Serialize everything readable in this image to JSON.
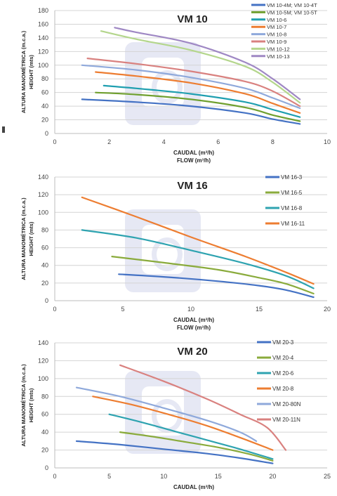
{
  "chart_data": [
    {
      "type": "line",
      "title": "VM 10",
      "xlabel": "CAUDAL (m³/h)",
      "xlabel2": "FLOW (m³/h)",
      "ylabel": "ALTURA MANOMÉTRICA (m.c.a.)",
      "ylabel2": "HEIGHT (mts)",
      "xlim": [
        0,
        10
      ],
      "ylim": [
        0,
        180
      ],
      "xticks": [
        0,
        2,
        4,
        6,
        8,
        10
      ],
      "yticks": [
        0,
        20,
        40,
        60,
        80,
        100,
        120,
        140,
        160,
        180
      ],
      "grid": "horizontal",
      "legend": "right",
      "series": [
        {
          "name": "VM 10-4M; VM 10-4T",
          "color": "#4472c4",
          "x": [
            1,
            3,
            5,
            7,
            8,
            9
          ],
          "y": [
            50,
            46,
            40,
            30,
            21,
            14
          ]
        },
        {
          "name": "VM 10-5M; VM 10-5T",
          "color": "#70a030",
          "x": [
            1.5,
            3,
            5,
            7,
            8,
            9
          ],
          "y": [
            60,
            57,
            50,
            38,
            27,
            18
          ]
        },
        {
          "name": "VM 10-6",
          "color": "#1f9fb0",
          "x": [
            1.8,
            3,
            5,
            7,
            8,
            9
          ],
          "y": [
            70,
            66,
            58,
            46,
            35,
            24
          ]
        },
        {
          "name": "VM 10-7",
          "color": "#ed7d31",
          "x": [
            1.5,
            3,
            5,
            7,
            8,
            9
          ],
          "y": [
            90,
            84,
            74,
            58,
            44,
            30
          ]
        },
        {
          "name": "VM 10-8",
          "color": "#8fa9db",
          "x": [
            1,
            3,
            5,
            7,
            8,
            9
          ],
          "y": [
            100,
            93,
            82,
            66,
            52,
            37
          ]
        },
        {
          "name": "VM 10-9",
          "color": "#d9817f",
          "x": [
            1.2,
            3,
            5,
            7,
            8,
            9
          ],
          "y": [
            110,
            102,
            91,
            76,
            62,
            40
          ]
        },
        {
          "name": "VM 10-12",
          "color": "#b4d68c",
          "x": [
            1.7,
            3,
            5,
            7,
            8,
            9
          ],
          "y": [
            150,
            138,
            122,
            98,
            75,
            45
          ]
        },
        {
          "name": "VM 10-13",
          "color": "#9f88c4",
          "x": [
            2.2,
            3,
            5,
            7,
            8,
            9
          ],
          "y": [
            155,
            148,
            132,
            104,
            80,
            50
          ]
        }
      ]
    },
    {
      "type": "line",
      "title": "VM 16",
      "xlabel": "CAUDAL (m³/h)",
      "xlabel2": "FLOW (m³/h)",
      "ylabel": "ALTURA MANOMÉTRICA (m.c.a.)",
      "ylabel2": "HEIGHT (mts)",
      "xlim": [
        0,
        20
      ],
      "ylim": [
        0,
        140
      ],
      "xticks": [
        0,
        5,
        10,
        15,
        20
      ],
      "yticks": [
        0,
        20,
        40,
        60,
        80,
        100,
        120,
        140
      ],
      "grid": "horizontal",
      "legend": "right",
      "series": [
        {
          "name": "VM 16-3",
          "color": "#4472c4",
          "x": [
            4.7,
            8,
            12,
            15,
            17,
            19
          ],
          "y": [
            30,
            27,
            22,
            17,
            12,
            4
          ]
        },
        {
          "name": "VM 16-5",
          "color": "#8aab3c",
          "x": [
            4.2,
            8,
            12,
            15,
            17,
            19
          ],
          "y": [
            50,
            43,
            35,
            26,
            19,
            8
          ]
        },
        {
          "name": "VM 16-8",
          "color": "#2ea3b0",
          "x": [
            2,
            6,
            10,
            14,
            17,
            19
          ],
          "y": [
            80,
            71,
            57,
            42,
            28,
            14
          ]
        },
        {
          "name": "VM 16-11",
          "color": "#ed7d31",
          "x": [
            2,
            6,
            10,
            14,
            17,
            19
          ],
          "y": [
            117,
            95,
            72,
            50,
            32,
            19
          ]
        }
      ]
    },
    {
      "type": "line",
      "title": "VM 20",
      "xlabel": "CAUDAL (m³/h)",
      "xlabel2": "",
      "ylabel": "ALTURA MANOMÉTRICA (m.c.a.)",
      "ylabel2": "HEIGHT (mts)",
      "xlim": [
        0,
        25
      ],
      "ylim": [
        0,
        140
      ],
      "xticks": [
        0,
        5,
        10,
        15,
        20,
        25
      ],
      "yticks": [
        0,
        20,
        40,
        60,
        80,
        100,
        120,
        140
      ],
      "grid": "horizontal",
      "legend": "right",
      "series": [
        {
          "name": "VM 20-3",
          "color": "#4472c4",
          "x": [
            2,
            6,
            10,
            14,
            17,
            20
          ],
          "y": [
            30,
            26,
            21,
            16,
            11,
            5
          ]
        },
        {
          "name": "VM 20-4",
          "color": "#8aab3c",
          "x": [
            6,
            9,
            12,
            15,
            18,
            20
          ],
          "y": [
            40,
            35,
            29,
            23,
            15,
            8
          ]
        },
        {
          "name": "VM 20-6",
          "color": "#2ea3b0",
          "x": [
            5,
            8,
            11,
            14,
            17,
            20
          ],
          "y": [
            60,
            51,
            41,
            31,
            21,
            10
          ]
        },
        {
          "name": "VM 20-8",
          "color": "#ed7d31",
          "x": [
            3.5,
            7,
            11,
            14,
            17,
            20
          ],
          "y": [
            80,
            71,
            58,
            47,
            34,
            20
          ]
        },
        {
          "name": "VM 20-80N",
          "color": "#8fa9db",
          "x": [
            2,
            6,
            10,
            14,
            17,
            18.5
          ],
          "y": [
            90,
            80,
            67,
            53,
            40,
            30
          ]
        },
        {
          "name": "VM 20-11N",
          "color": "#d9817f",
          "x": [
            6,
            10,
            14,
            17,
            19.5,
            21.2
          ],
          "y": [
            115,
            97,
            77,
            60,
            45,
            20
          ]
        }
      ]
    }
  ]
}
